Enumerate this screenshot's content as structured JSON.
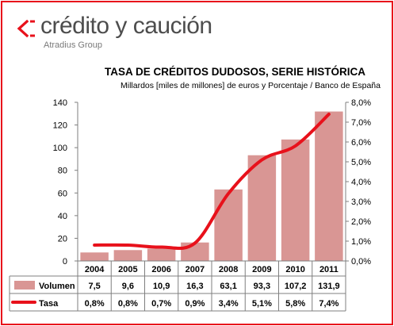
{
  "brand": {
    "name": "crédito y caución",
    "group": "Atradius Group",
    "colors": {
      "accent": "#e8111b",
      "text": "#4d4d4d"
    }
  },
  "chart_data": {
    "type": "bar",
    "title": "TASA DE CRÉDITOS DUDOSOS, SERIE HISTÓRICA",
    "subtitle": "Millardos [miles de millones] de euros y Porcentaje / Banco de España",
    "categories": [
      "2004",
      "2005",
      "2006",
      "2007",
      "2008",
      "2009",
      "2010",
      "2011"
    ],
    "series": [
      {
        "name": "Volumen",
        "type": "bar",
        "axis": "left",
        "color": "#d99694",
        "values": [
          7.5,
          9.6,
          10.9,
          16.3,
          63.1,
          93.3,
          107.2,
          131.9
        ],
        "labels": [
          "7,5",
          "9,6",
          "10,9",
          "16,3",
          "63,1",
          "93,3",
          "107,2",
          "131,9"
        ]
      },
      {
        "name": "Tasa",
        "type": "line",
        "axis": "right",
        "color": "#e8111b",
        "values": [
          0.8,
          0.8,
          0.7,
          0.9,
          3.4,
          5.1,
          5.8,
          7.4
        ],
        "labels": [
          "0,8%",
          "0,8%",
          "0,7%",
          "0,9%",
          "3,4%",
          "5,1%",
          "5,8%",
          "7,4%"
        ]
      }
    ],
    "y_left": {
      "min": 0,
      "max": 140,
      "step": 20,
      "ticks": [
        "0",
        "20",
        "40",
        "60",
        "80",
        "100",
        "120",
        "140"
      ]
    },
    "y_right": {
      "min": 0,
      "max": 8,
      "step": 1,
      "ticks": [
        "0,0%",
        "1,0%",
        "2,0%",
        "3,0%",
        "4,0%",
        "5,0%",
        "6,0%",
        "7,0%",
        "8,0%"
      ]
    },
    "grid": false,
    "legend": "data-table-below"
  }
}
